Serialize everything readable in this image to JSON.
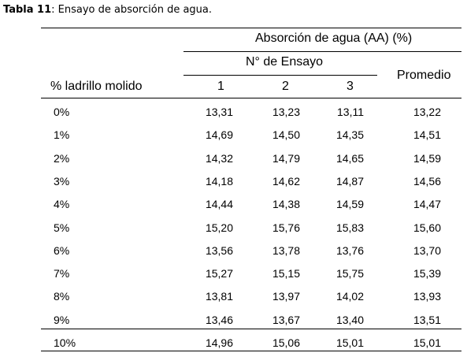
{
  "caption": {
    "label": "Tabla 11",
    "text": ":  Ensayo de absorción de agua."
  },
  "table": {
    "group_header": "Absorción de agua (AA) (%)",
    "subgroup_header": "N° de Ensayo",
    "row_header": "% ladrillo molido",
    "columns": [
      "1",
      "2",
      "3"
    ],
    "average_header": "Promedio",
    "rows": [
      [
        "0%",
        "13,31",
        "13,23",
        "13,11",
        "13,22"
      ],
      [
        "1%",
        "14,69",
        "14,50",
        "14,35",
        "14,51"
      ],
      [
        "2%",
        "14,32",
        "14,79",
        "14,65",
        "14,59"
      ],
      [
        "3%",
        "14,18",
        "14,62",
        "14,87",
        "14,56"
      ],
      [
        "4%",
        "14,44",
        "14,38",
        "14,59",
        "14,47"
      ],
      [
        "5%",
        "15,20",
        "15,76",
        "15,83",
        "15,60"
      ],
      [
        "6%",
        "13,56",
        "13,78",
        "13,76",
        "13,70"
      ],
      [
        "7%",
        "15,27",
        "15,15",
        "15,75",
        "15,39"
      ],
      [
        "8%",
        "13,81",
        "13,97",
        "14,02",
        "13,93"
      ],
      [
        "9%",
        "13,46",
        "13,67",
        "13,40",
        "13,51"
      ],
      [
        "10%",
        "14,96",
        "15,06",
        "15,01",
        "15,01"
      ]
    ]
  }
}
